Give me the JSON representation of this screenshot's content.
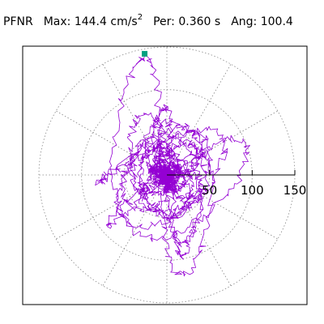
{
  "header": {
    "station": "PFNR",
    "max_label": "Max:",
    "max_value": "144.4",
    "max_unit": "cm/s",
    "max_unit_sup": "2",
    "per_label": "Per:",
    "per_value": "0.360",
    "per_unit": "s",
    "ang_label": "Ang:",
    "ang_value": "100.4"
  },
  "chart_data": {
    "type": "line",
    "title": "",
    "xlabel": "",
    "ylabel": "",
    "coordinate_system": "polar hodogram (horizontal acceleration orbit)",
    "radial_unit": "cm/s2",
    "radial_ticks": [
      50,
      100,
      150
    ],
    "radial_tick_labels": [
      "50",
      "100",
      "150"
    ],
    "r_max": 150,
    "grid_circles": [
      50,
      100,
      150
    ],
    "grid_spokes_deg": [
      0,
      30,
      60,
      90,
      120,
      150,
      180,
      210,
      240,
      270,
      300,
      330
    ],
    "grid": true,
    "peak": {
      "magnitude": 144.4,
      "angle_deg": 100.4,
      "marker": "square"
    },
    "series": [
      {
        "color": "#9400d3"
      }
    ],
    "marker_color": "#00a080",
    "grid_color": "#888888",
    "axis_color": "#000000"
  }
}
